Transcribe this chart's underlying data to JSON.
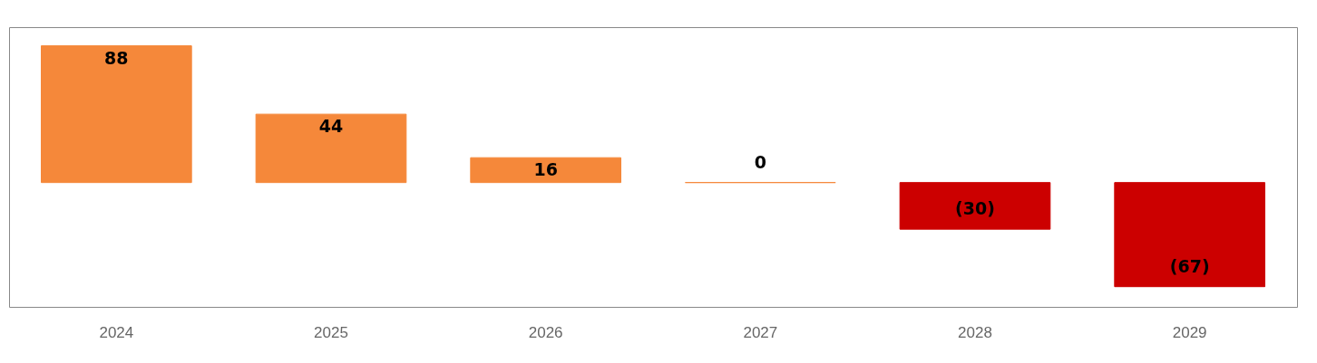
{
  "chart_data": {
    "type": "bar",
    "categories": [
      "2024",
      "2025",
      "2026",
      "2027",
      "2028",
      "2029"
    ],
    "values": [
      88,
      44,
      16,
      0,
      -30,
      -67
    ],
    "colors": [
      "#f5883a",
      "#f5883a",
      "#f5883a",
      "#f5883a",
      "#cc0000",
      "#cc0000"
    ],
    "value_labels": [
      "88",
      "44",
      "16",
      "0",
      "(30)",
      "(67)"
    ],
    "grid": false
  }
}
